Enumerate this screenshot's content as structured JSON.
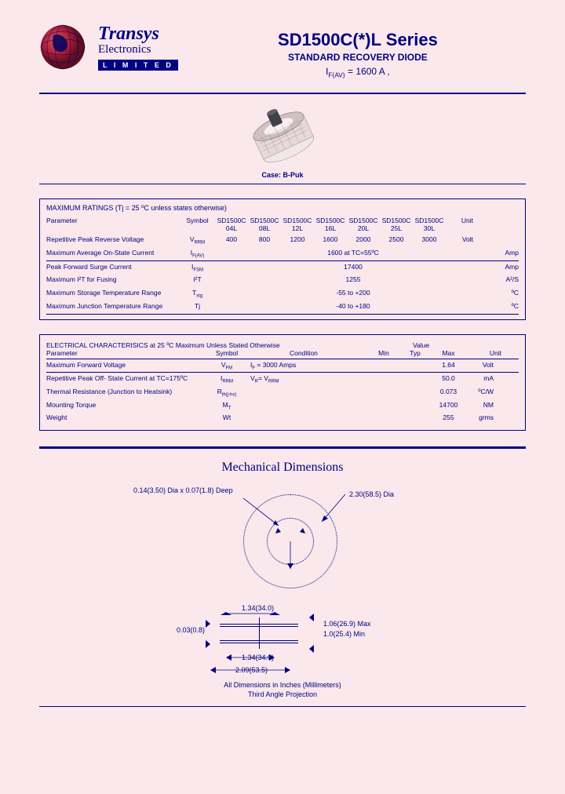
{
  "brand": {
    "name": "Transys",
    "sub": "Electronics",
    "badge": "L I M I T E D"
  },
  "header": {
    "title": "SD1500C(*)L Series",
    "subtitle": "STANDARD RECOVERY DIODE",
    "rating": "I",
    "rating_sub": "F(AV)",
    "rating_val": " = 1600 A ,"
  },
  "case_label": "Case: B-Puk",
  "max_ratings": {
    "title": "MAXIMUM RATINGS   (Tj = 25 ºC unless states otherwise)",
    "header": {
      "param": "Parameter",
      "symbol": "Symbol",
      "parts": [
        "SD1500C 04L",
        "SD1500C 08L",
        "SD1500C 12L",
        "SD1500C 16L",
        "SD1500C 20L",
        "SD1500C 25L",
        "SD1500C 30L"
      ],
      "unit": "Unit"
    },
    "rows": [
      {
        "param": "Repetitive Peak Reverse Voltage",
        "sym": "V",
        "sub": "RRM",
        "vals": [
          "400",
          "800",
          "1200",
          "1600",
          "2000",
          "2500",
          "3000"
        ],
        "unit": "Volt"
      },
      {
        "param": "Maximum Average On-State Current",
        "sym": "I",
        "sub": "F(AV)",
        "span": "1600 at TC=55ºC",
        "unit": "Amp"
      },
      {
        "param": "Peak Forward Surge Current",
        "sym": "I",
        "sub": "FSM",
        "span": "17400",
        "unit": "Amp"
      },
      {
        "param": "Maximum I²T for Fusing",
        "sym": "I²T",
        "sub": "",
        "span": "1255",
        "unit": "A²/S"
      },
      {
        "param": "Maximum Storage Temperature Range",
        "sym": "T",
        "sub": "stg",
        "span": "-55 to +200",
        "unit": "ºC"
      },
      {
        "param": "Maximum Junction Temperature Range",
        "sym": "Tj",
        "sub": "",
        "span": "-40 to +180",
        "unit": "ºC"
      }
    ]
  },
  "elec": {
    "title": "ELECTRICAL CHARACTERISICS  at 25 ºC Maximum Unless Stated Otherwise",
    "header": {
      "param": "Parameter",
      "sym": "Symbol",
      "cond": "Condition",
      "min": "Min",
      "typ": "Typ",
      "max": "Max",
      "val": "Value",
      "unit": "Unit"
    },
    "rows": [
      {
        "param": "Maximum Forward Voltage",
        "sym": "V",
        "sub": "FM",
        "cond": "I",
        "cond_sub": "F",
        "cond_rest": " = 3000 Amps",
        "max": "1.64",
        "unit": "Volt"
      },
      {
        "param": "Repetitive Peak Off- State Current at TC=175ºC",
        "sym": "I",
        "sub": "RRM",
        "cond": "V",
        "cond_sub": "R",
        "cond_rest": "= V",
        "cond_sub2": "RRM",
        "max": "50.0",
        "unit": "mA"
      },
      {
        "param": "Thermal Resistance (Junction to Heatsink)",
        "sym": "R",
        "sub": "th(j-hs)",
        "cond": "",
        "max": "0.073",
        "unit": "ºC/W"
      },
      {
        "param": "Mounting Torque",
        "sym": "M",
        "sub": "T",
        "cond": "",
        "max": "14700",
        "unit": "NM"
      },
      {
        "param": "Weight",
        "sym": "Wt",
        "sub": "",
        "cond": "",
        "max": "255",
        "unit": "grms"
      }
    ]
  },
  "mech": {
    "title": "Mechanical Dimensions",
    "dim1": "0.14(3.50) Dia x 0.07(1.8) Deep",
    "dim2": "2.30(58.5) Dia",
    "dim3": "0.03(0.8)",
    "dim4": "1.34(34.0)",
    "dim5": "1.06(26.9) Max",
    "dim6": "1.0(25.4) Min",
    "dim7": "1.34(34.0)",
    "dim8": "2.09(53.5)",
    "note1": "All Dimensions in Inches (Millimeters)",
    "note2": "Third Angle Projection"
  },
  "colors": {
    "bg": "#fae8ec",
    "ink": "#000080",
    "globe": "#a01830",
    "globe_light": "#d04050"
  }
}
